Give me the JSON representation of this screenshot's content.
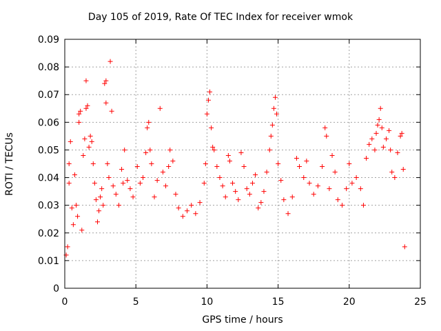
{
  "chart_data": {
    "type": "scatter",
    "title": "Day 105 of 2019, Rate Of TEC Index for receiver wmok",
    "xlabel": "GPS time / hours",
    "ylabel": "ROTI / TECUs",
    "xlim": [
      0,
      25
    ],
    "ylim": [
      0,
      0.09
    ],
    "xticks": [
      "0",
      "5",
      "10",
      "15",
      "20",
      "25"
    ],
    "yticks": [
      "0",
      "0.01",
      "0.02",
      "0.03",
      "0.04",
      "0.05",
      "0.06",
      "0.07",
      "0.08",
      "0.09"
    ],
    "grid": true,
    "marker": "+",
    "color": "#ff0000",
    "series": [
      {
        "points": [
          [
            0.1,
            0.012
          ],
          [
            0.2,
            0.015
          ],
          [
            0.3,
            0.038
          ],
          [
            0.3,
            0.045
          ],
          [
            0.4,
            0.053
          ],
          [
            0.5,
            0.029
          ],
          [
            0.6,
            0.023
          ],
          [
            0.8,
            0.03
          ],
          [
            0.7,
            0.041
          ],
          [
            0.9,
            0.026
          ],
          [
            1.0,
            0.063
          ],
          [
            1.0,
            0.06
          ],
          [
            1.1,
            0.064
          ],
          [
            1.2,
            0.021
          ],
          [
            1.3,
            0.048
          ],
          [
            1.4,
            0.054
          ],
          [
            1.5,
            0.075
          ],
          [
            1.5,
            0.065
          ],
          [
            1.6,
            0.066
          ],
          [
            1.7,
            0.051
          ],
          [
            1.8,
            0.055
          ],
          [
            1.9,
            0.053
          ],
          [
            2.0,
            0.045
          ],
          [
            2.1,
            0.038
          ],
          [
            2.2,
            0.032
          ],
          [
            2.3,
            0.024
          ],
          [
            2.4,
            0.028
          ],
          [
            2.5,
            0.033
          ],
          [
            2.6,
            0.036
          ],
          [
            2.7,
            0.03
          ],
          [
            2.8,
            0.074
          ],
          [
            2.9,
            0.075
          ],
          [
            2.9,
            0.067
          ],
          [
            3.0,
            0.045
          ],
          [
            3.1,
            0.04
          ],
          [
            3.2,
            0.082
          ],
          [
            3.3,
            0.064
          ],
          [
            3.4,
            0.037
          ],
          [
            3.6,
            0.034
          ],
          [
            3.8,
            0.03
          ],
          [
            4.0,
            0.043
          ],
          [
            4.1,
            0.038
          ],
          [
            4.2,
            0.05
          ],
          [
            4.4,
            0.039
          ],
          [
            4.6,
            0.036
          ],
          [
            4.8,
            0.033
          ],
          [
            5.1,
            0.044
          ],
          [
            5.3,
            0.038
          ],
          [
            5.5,
            0.04
          ],
          [
            5.7,
            0.049
          ],
          [
            5.8,
            0.058
          ],
          [
            5.9,
            0.06
          ],
          [
            6.0,
            0.05
          ],
          [
            6.1,
            0.045
          ],
          [
            6.3,
            0.033
          ],
          [
            6.5,
            0.039
          ],
          [
            6.7,
            0.065
          ],
          [
            6.9,
            0.042
          ],
          [
            7.1,
            0.037
          ],
          [
            7.3,
            0.044
          ],
          [
            7.4,
            0.05
          ],
          [
            7.6,
            0.046
          ],
          [
            7.8,
            0.034
          ],
          [
            8.0,
            0.029
          ],
          [
            8.3,
            0.026
          ],
          [
            8.6,
            0.028
          ],
          [
            8.9,
            0.03
          ],
          [
            9.2,
            0.027
          ],
          [
            9.5,
            0.031
          ],
          [
            9.8,
            0.038
          ],
          [
            9.9,
            0.045
          ],
          [
            10.0,
            0.063
          ],
          [
            10.1,
            0.068
          ],
          [
            10.2,
            0.071
          ],
          [
            10.3,
            0.058
          ],
          [
            10.4,
            0.051
          ],
          [
            10.5,
            0.05
          ],
          [
            10.7,
            0.044
          ],
          [
            10.9,
            0.04
          ],
          [
            11.1,
            0.037
          ],
          [
            11.3,
            0.033
          ],
          [
            11.5,
            0.048
          ],
          [
            11.6,
            0.046
          ],
          [
            11.8,
            0.038
          ],
          [
            12.0,
            0.035
          ],
          [
            12.2,
            0.032
          ],
          [
            12.4,
            0.049
          ],
          [
            12.6,
            0.044
          ],
          [
            12.8,
            0.036
          ],
          [
            13.0,
            0.034
          ],
          [
            13.2,
            0.038
          ],
          [
            13.4,
            0.041
          ],
          [
            13.6,
            0.029
          ],
          [
            13.8,
            0.031
          ],
          [
            14.0,
            0.035
          ],
          [
            14.2,
            0.042
          ],
          [
            14.4,
            0.05
          ],
          [
            14.5,
            0.055
          ],
          [
            14.6,
            0.059
          ],
          [
            14.7,
            0.065
          ],
          [
            14.8,
            0.069
          ],
          [
            14.9,
            0.063
          ],
          [
            15.0,
            0.045
          ],
          [
            15.2,
            0.039
          ],
          [
            15.4,
            0.032
          ],
          [
            15.7,
            0.027
          ],
          [
            16.0,
            0.033
          ],
          [
            16.3,
            0.047
          ],
          [
            16.5,
            0.044
          ],
          [
            16.8,
            0.04
          ],
          [
            17.0,
            0.046
          ],
          [
            17.2,
            0.038
          ],
          [
            17.5,
            0.034
          ],
          [
            17.8,
            0.037
          ],
          [
            18.1,
            0.044
          ],
          [
            18.3,
            0.058
          ],
          [
            18.4,
            0.055
          ],
          [
            18.6,
            0.036
          ],
          [
            18.8,
            0.048
          ],
          [
            19.0,
            0.042
          ],
          [
            19.2,
            0.032
          ],
          [
            19.5,
            0.03
          ],
          [
            19.8,
            0.036
          ],
          [
            20.0,
            0.045
          ],
          [
            20.2,
            0.038
          ],
          [
            20.5,
            0.04
          ],
          [
            20.8,
            0.036
          ],
          [
            21.0,
            0.03
          ],
          [
            21.2,
            0.047
          ],
          [
            21.4,
            0.052
          ],
          [
            21.6,
            0.054
          ],
          [
            21.8,
            0.05
          ],
          [
            21.9,
            0.056
          ],
          [
            22.0,
            0.059
          ],
          [
            22.1,
            0.061
          ],
          [
            22.2,
            0.065
          ],
          [
            22.3,
            0.058
          ],
          [
            22.4,
            0.051
          ],
          [
            22.6,
            0.054
          ],
          [
            22.8,
            0.057
          ],
          [
            22.9,
            0.05
          ],
          [
            23.0,
            0.042
          ],
          [
            23.2,
            0.04
          ],
          [
            23.4,
            0.049
          ],
          [
            23.6,
            0.055
          ],
          [
            23.7,
            0.056
          ],
          [
            23.8,
            0.043
          ],
          [
            23.9,
            0.015
          ]
        ]
      }
    ]
  }
}
